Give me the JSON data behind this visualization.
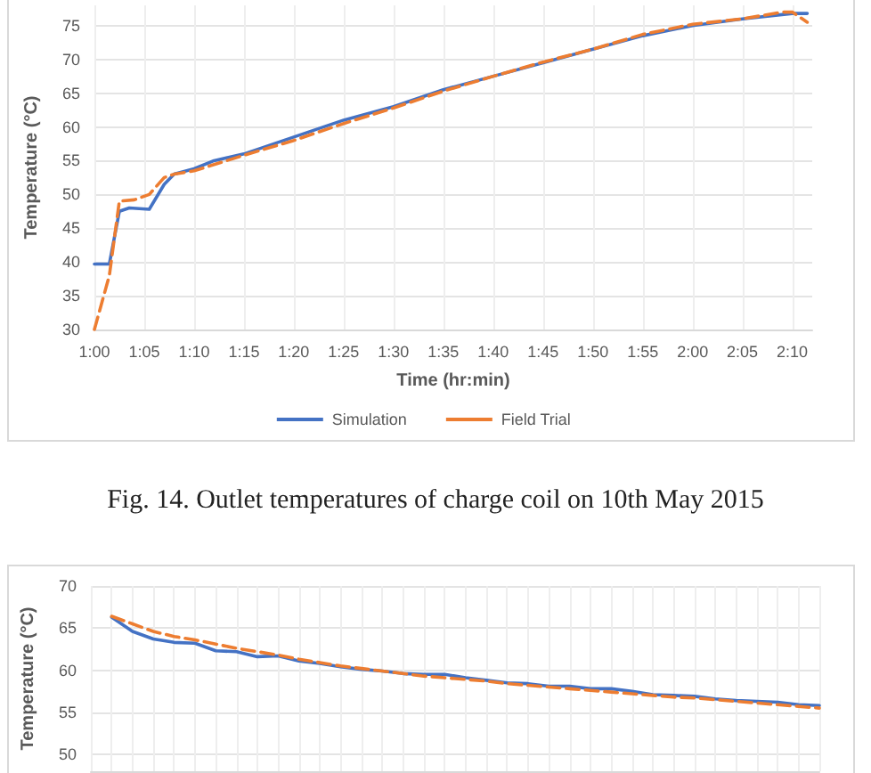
{
  "chart_data": [
    {
      "type": "line",
      "xlabel": "Time (hr:min)",
      "ylabel": "Temperature (°C)",
      "annotations": [
        "Fig. 14. Outlet temperatures of charge coil on 10th May 2015"
      ],
      "xlim": [
        1,
        2.2
      ],
      "ylim": [
        30,
        78
      ],
      "yticks": [
        30,
        35,
        40,
        45,
        50,
        55,
        60,
        65,
        70,
        75
      ],
      "xticks": [
        {
          "value": 1,
          "label": "1:00"
        },
        {
          "value": 1.0833,
          "label": "1:05"
        },
        {
          "value": 1.1667,
          "label": "1:10"
        },
        {
          "value": 1.25,
          "label": "1:15"
        },
        {
          "value": 1.3333,
          "label": "1:20"
        },
        {
          "value": 1.4167,
          "label": "1:25"
        },
        {
          "value": 1.5,
          "label": "1:30"
        },
        {
          "value": 1.5833,
          "label": "1:35"
        },
        {
          "value": 1.6667,
          "label": "1:40"
        },
        {
          "value": 1.75,
          "label": "1:45"
        },
        {
          "value": 1.8333,
          "label": "1:50"
        },
        {
          "value": 1.9167,
          "label": "1:55"
        },
        {
          "value": 2,
          "label": "2:00"
        },
        {
          "value": 2.0833,
          "label": "2:05"
        },
        {
          "value": 2.1667,
          "label": "2:10"
        }
      ],
      "grid": true,
      "legend": "bottom",
      "marker": "none",
      "series": [
        {
          "name": "Simulation",
          "color": "#4472c4",
          "line_style": "solid",
          "x": [
            1,
            1.025,
            1.0417,
            1.0583,
            1.0917,
            1.1167,
            1.1333,
            1.1667,
            1.2,
            1.25,
            1.3333,
            1.4167,
            1.5,
            1.5833,
            1.6667,
            1.75,
            1.8333,
            1.9167,
            2,
            2.0833,
            2.1667,
            2.1917
          ],
          "values": [
            39.7,
            39.7,
            47.5,
            48,
            47.8,
            51.5,
            53,
            53.8,
            55,
            56,
            58.5,
            61,
            63,
            65.5,
            67.5,
            69.5,
            71.5,
            73.5,
            75,
            76,
            76.8,
            76.8
          ]
        },
        {
          "name": "Field Trial",
          "color": "#ed7d31",
          "line_style": "dashed",
          "x": [
            1,
            1.025,
            1.0417,
            1.0667,
            1.0917,
            1.1167,
            1.1333,
            1.1667,
            1.25,
            1.3333,
            1.4167,
            1.5,
            1.5833,
            1.6667,
            1.75,
            1.8333,
            1.9167,
            2,
            2.0833,
            2.15,
            2.1667,
            2.1917
          ],
          "values": [
            30,
            38,
            49,
            49.2,
            50,
            52.5,
            53,
            53.5,
            55.8,
            58,
            60.5,
            62.8,
            65.3,
            67.5,
            69.6,
            71.5,
            73.7,
            75.2,
            76,
            77,
            77,
            75.5
          ]
        }
      ]
    },
    {
      "type": "line",
      "ylabel": "Temperature (°C)",
      "ylim": [
        48,
        70
      ],
      "yticks": [
        50,
        55,
        60,
        65,
        70
      ],
      "grid": true,
      "tick_labels": "y",
      "marker": "none",
      "categories": [
        null,
        null,
        null,
        null,
        null,
        null,
        null,
        null,
        null,
        null,
        null,
        null,
        null,
        null,
        null,
        null,
        null,
        null,
        null,
        null,
        null,
        null,
        null,
        null,
        null,
        null,
        null,
        null,
        null,
        null,
        null,
        null,
        null,
        null,
        null,
        null
      ],
      "series": [
        {
          "color": "#4472c4",
          "line_style": "solid",
          "values": [
            null,
            66.3,
            64.6,
            63.7,
            63.3,
            63.2,
            62.3,
            62.2,
            61.6,
            61.7,
            61.1,
            60.8,
            60.4,
            60.1,
            59.9,
            59.6,
            59.5,
            59.5,
            59.1,
            58.8,
            58.5,
            58.4,
            58.1,
            58.1,
            57.8,
            57.8,
            57.5,
            57.1,
            57.0,
            56.9,
            56.6,
            56.4,
            56.3,
            56.2,
            55.9,
            55.8
          ]
        },
        {
          "color": "#ed7d31",
          "line_style": "dashed",
          "values": [
            null,
            66.4,
            65.5,
            64.6,
            64.0,
            63.6,
            63.1,
            62.6,
            62.2,
            61.8,
            61.3,
            60.9,
            60.5,
            60.2,
            59.9,
            59.6,
            59.3,
            59.1,
            58.9,
            58.7,
            58.4,
            58.2,
            58.0,
            57.8,
            57.6,
            57.4,
            57.2,
            57.0,
            56.8,
            56.7,
            56.5,
            56.3,
            56.1,
            55.9,
            55.7,
            55.5
          ]
        }
      ]
    }
  ]
}
